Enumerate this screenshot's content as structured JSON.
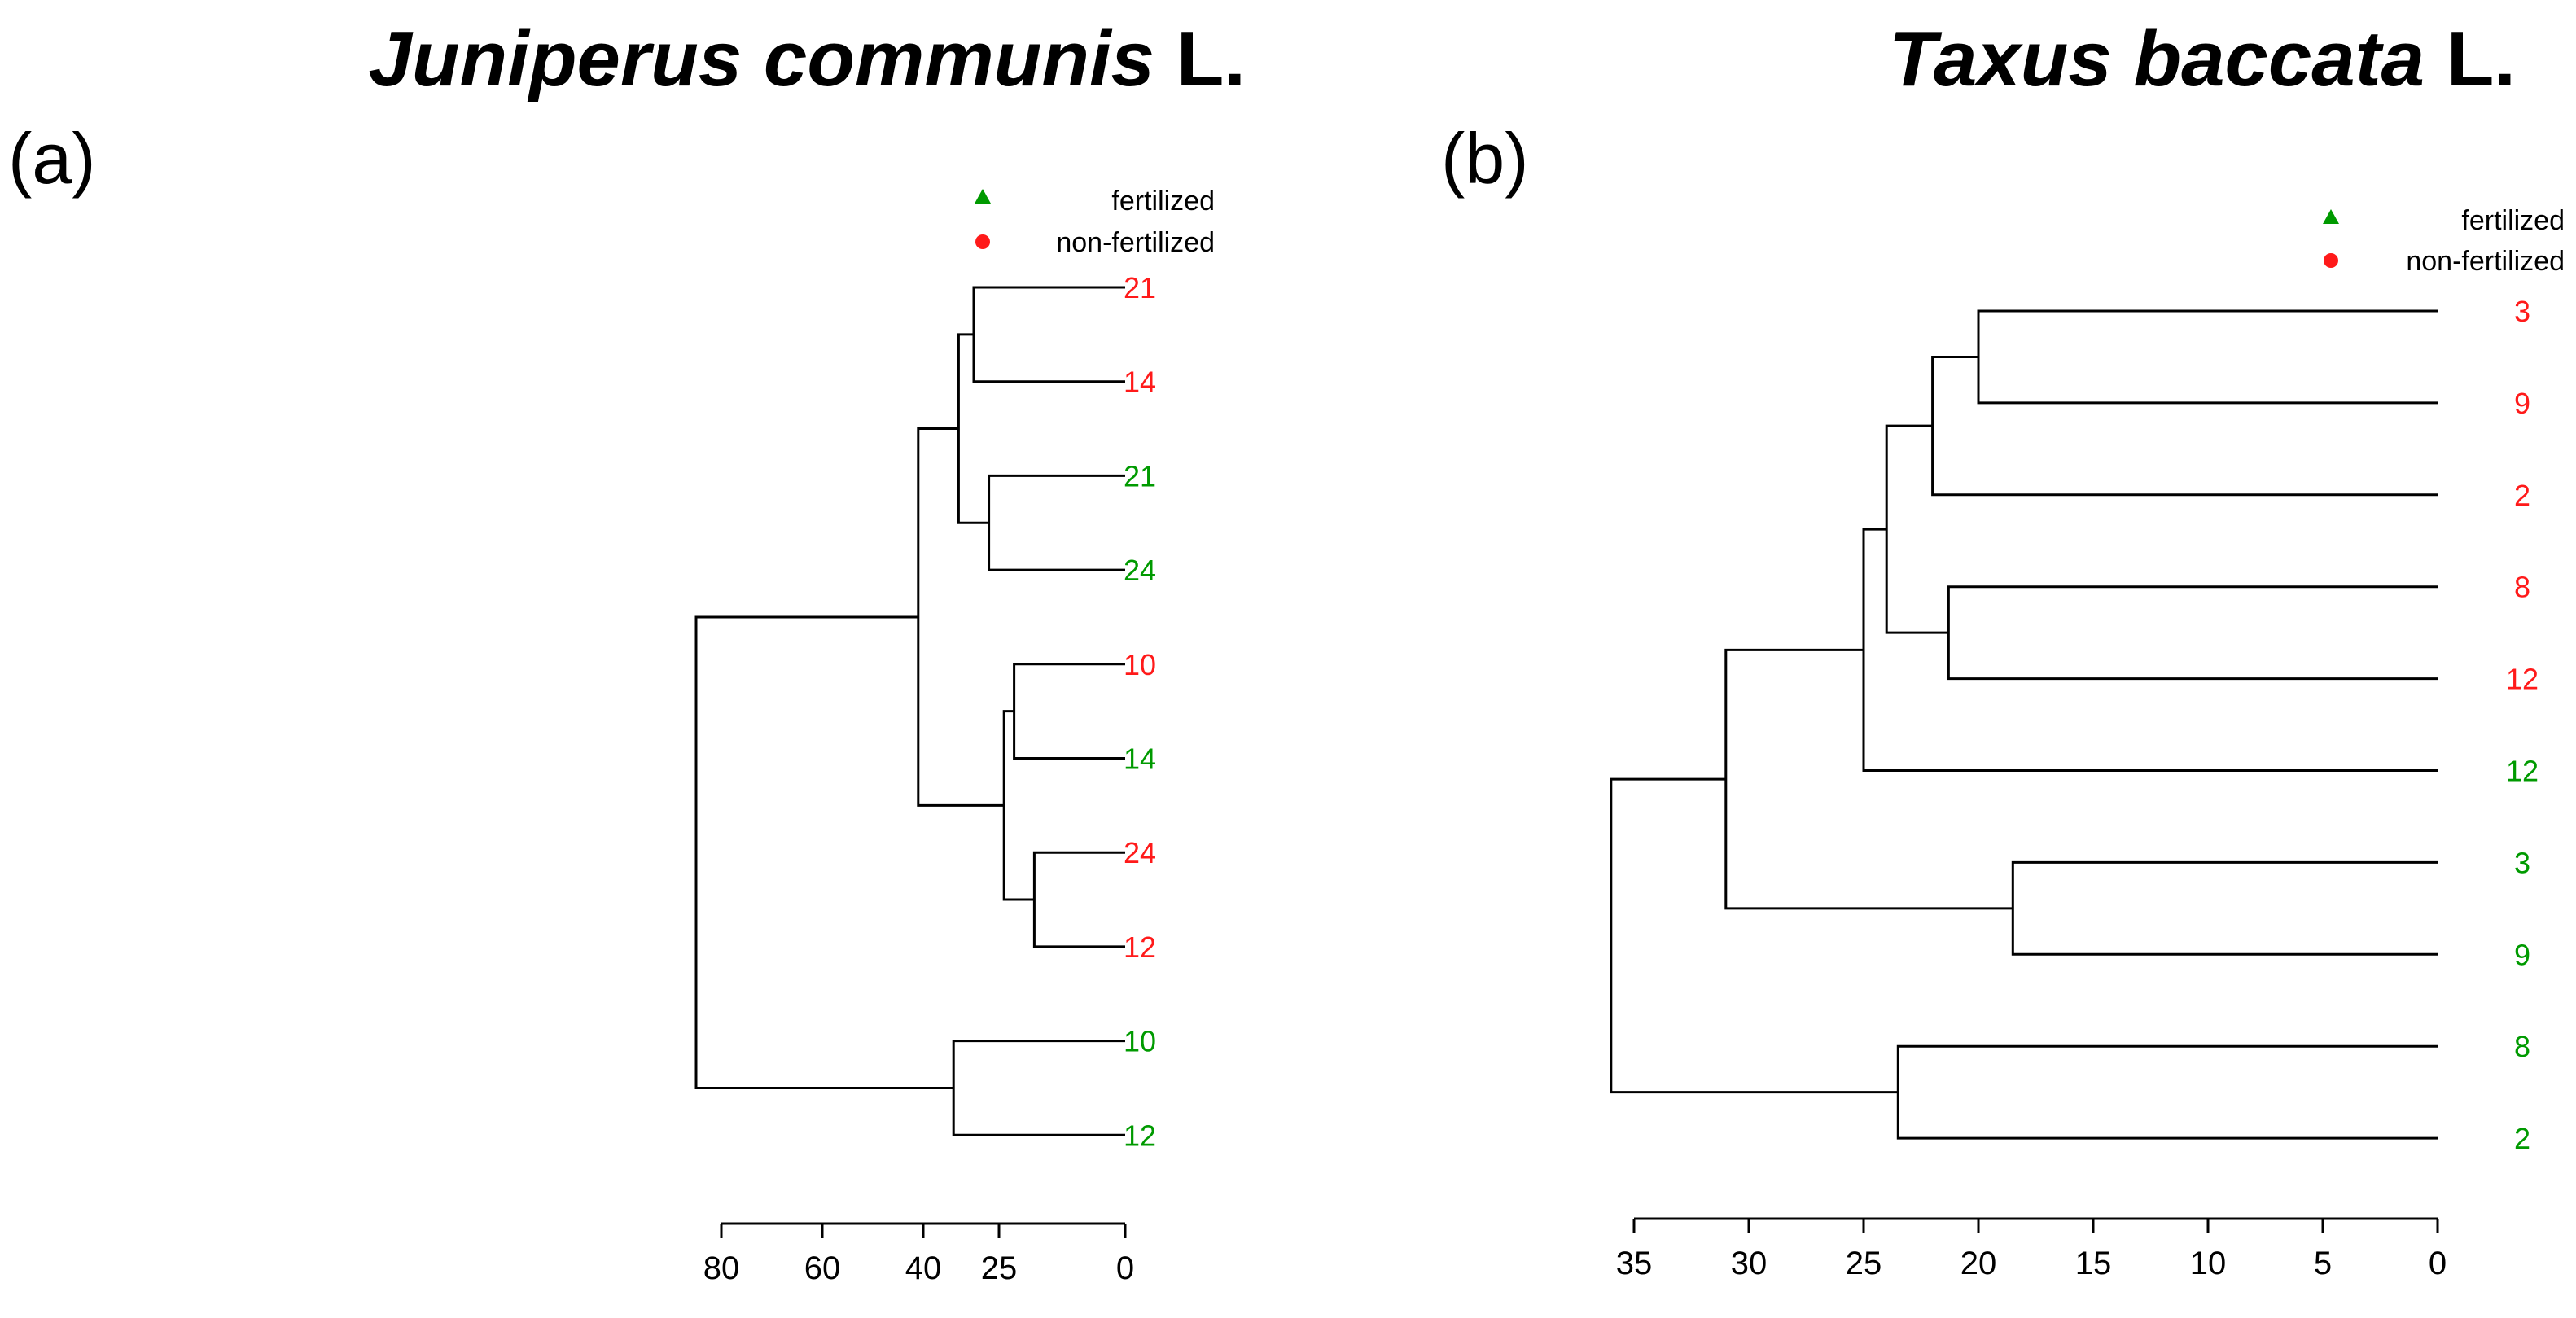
{
  "colors": {
    "fertilized": "#009a00",
    "non_fertilized": "#ff1a1a",
    "line": "#000000"
  },
  "chart_data": [
    {
      "type": "dendrogram",
      "panel_label": "(a)",
      "title_species": "Juniperus communis",
      "title_author": "L.",
      "legend": [
        {
          "label": "fertilized",
          "marker": "triangle",
          "color": "#009a00"
        },
        {
          "label": "non-fertilized",
          "marker": "circle",
          "color": "#ff1a1a"
        }
      ],
      "axis": {
        "reversed": true,
        "ticks": [
          80,
          60,
          40,
          25,
          0
        ],
        "tick_labels": [
          "80",
          "60",
          "40",
          "25",
          "0"
        ]
      },
      "leaves": [
        {
          "label": "21",
          "group": "non-fertilized"
        },
        {
          "label": "14",
          "group": "non-fertilized"
        },
        {
          "label": "21",
          "group": "fertilized"
        },
        {
          "label": "24",
          "group": "fertilized"
        },
        {
          "label": "10",
          "group": "non-fertilized"
        },
        {
          "label": "14",
          "group": "fertilized"
        },
        {
          "label": "24",
          "group": "non-fertilized"
        },
        {
          "label": "12",
          "group": "non-fertilized"
        },
        {
          "label": "10",
          "group": "fertilized"
        },
        {
          "label": "12",
          "group": "fertilized"
        }
      ],
      "merges": [
        {
          "a": "L0",
          "b": "L1",
          "height": 30
        },
        {
          "a": "L2",
          "b": "L3",
          "height": 27
        },
        {
          "a": "M0",
          "b": "M1",
          "height": 33
        },
        {
          "a": "L4",
          "b": "L5",
          "height": 22
        },
        {
          "a": "L6",
          "b": "L7",
          "height": 18
        },
        {
          "a": "M3",
          "b": "M4",
          "height": 24
        },
        {
          "a": "M2",
          "b": "M5",
          "height": 41
        },
        {
          "a": "L8",
          "b": "L9",
          "height": 34
        },
        {
          "a": "M6",
          "b": "M7",
          "height": 85
        }
      ]
    },
    {
      "type": "dendrogram",
      "panel_label": "(b)",
      "title_species": "Taxus baccata",
      "title_author": "L.",
      "legend": [
        {
          "label": "fertilized",
          "marker": "triangle",
          "color": "#009a00"
        },
        {
          "label": "non-fertilized",
          "marker": "circle",
          "color": "#ff1a1a"
        }
      ],
      "axis": {
        "reversed": true,
        "ticks": [
          35,
          30,
          25,
          20,
          15,
          10,
          5,
          0
        ],
        "tick_labels": [
          "35",
          "30",
          "25",
          "20",
          "15",
          "10",
          "5",
          "0"
        ]
      },
      "leaves": [
        {
          "label": "3",
          "group": "non-fertilized"
        },
        {
          "label": "9",
          "group": "non-fertilized"
        },
        {
          "label": "2",
          "group": "non-fertilized"
        },
        {
          "label": "8",
          "group": "non-fertilized"
        },
        {
          "label": "12",
          "group": "non-fertilized"
        },
        {
          "label": "12",
          "group": "fertilized"
        },
        {
          "label": "3",
          "group": "fertilized"
        },
        {
          "label": "9",
          "group": "fertilized"
        },
        {
          "label": "8",
          "group": "fertilized"
        },
        {
          "label": "2",
          "group": "fertilized"
        }
      ],
      "merges": [
        {
          "a": "L0",
          "b": "L1",
          "height": 20
        },
        {
          "a": "M0",
          "b": "L2",
          "height": 22
        },
        {
          "a": "L3",
          "b": "L4",
          "height": 21.3
        },
        {
          "a": "M1",
          "b": "M2",
          "height": 24
        },
        {
          "a": "M3",
          "b": "L5",
          "height": 25
        },
        {
          "a": "L6",
          "b": "L7",
          "height": 18.5
        },
        {
          "a": "M4",
          "b": "M5",
          "height": 31
        },
        {
          "a": "L8",
          "b": "L9",
          "height": 23.5
        },
        {
          "a": "M6",
          "b": "M7",
          "height": 36
        }
      ]
    }
  ]
}
